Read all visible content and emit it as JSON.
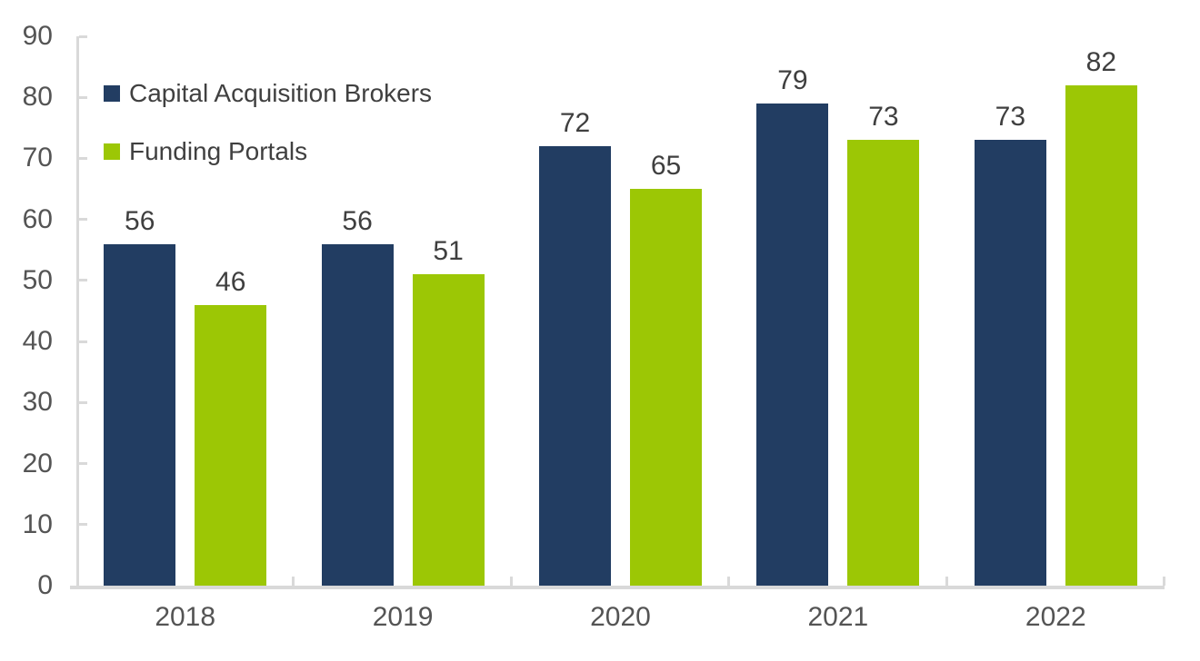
{
  "chart_data": {
    "type": "bar",
    "categories": [
      "2018",
      "2019",
      "2020",
      "2021",
      "2022"
    ],
    "series": [
      {
        "name": "Capital Acquisition Brokers",
        "color": "#223D62",
        "values": [
          56,
          56,
          72,
          79,
          73
        ]
      },
      {
        "name": "Funding Portals",
        "color": "#9CC705",
        "values": [
          46,
          51,
          65,
          73,
          82
        ]
      }
    ],
    "title": "",
    "xlabel": "",
    "ylabel": "",
    "ylim": [
      0,
      90
    ],
    "ytick_step": 10,
    "yticks": [
      0,
      10,
      20,
      30,
      40,
      50,
      60,
      70,
      80,
      90
    ],
    "grid": false,
    "legend_position": "top-left",
    "data_labels": true
  },
  "colors": {
    "background": "#FFFFFF",
    "axis_line": "#D9D9D9",
    "tick_label_text": "#545454",
    "value_label_text": "#3F3F3F",
    "legend_text": "#404040"
  }
}
